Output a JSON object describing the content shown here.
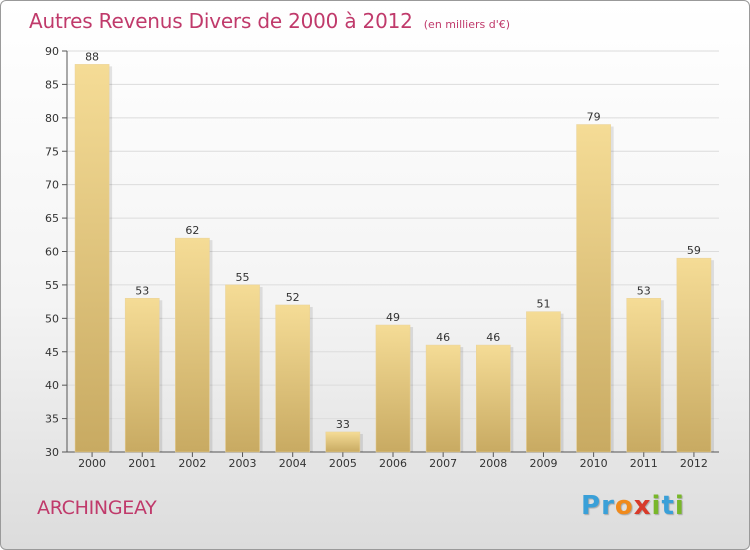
{
  "chart_data": {
    "type": "bar",
    "title": "Autres Revenus Divers de 2000 à 2012",
    "subtitle": "(en milliers d'€)",
    "xlabel": "",
    "ylabel": "",
    "categories": [
      "2000",
      "2001",
      "2002",
      "2003",
      "2004",
      "2005",
      "2006",
      "2007",
      "2008",
      "2009",
      "2010",
      "2011",
      "2012"
    ],
    "values": [
      88,
      53,
      62,
      55,
      52,
      33,
      49,
      46,
      46,
      51,
      79,
      53,
      59
    ],
    "ylim": [
      30,
      90
    ],
    "yticks": [
      30,
      35,
      40,
      45,
      50,
      55,
      60,
      65,
      70,
      75,
      80,
      85,
      90
    ],
    "grid": true,
    "legend": "none",
    "colors": {
      "bar_light": "#f5dc96",
      "bar_dark": "#c8aa62",
      "grid": "#dcdcdc",
      "title": "#c03a6b"
    }
  },
  "footer": {
    "town": "ARCHINGEAY",
    "brand_letters": [
      {
        "char": "P",
        "color": "#3aa0d8"
      },
      {
        "char": "r",
        "color": "#3aa0d8"
      },
      {
        "char": "o",
        "color": "#f08a1c"
      },
      {
        "char": "x",
        "color": "#d83a2a"
      },
      {
        "char": "i",
        "color": "#79b72a"
      },
      {
        "char": "t",
        "color": "#3aa0d8"
      },
      {
        "char": "i",
        "color": "#79b72a"
      }
    ]
  }
}
